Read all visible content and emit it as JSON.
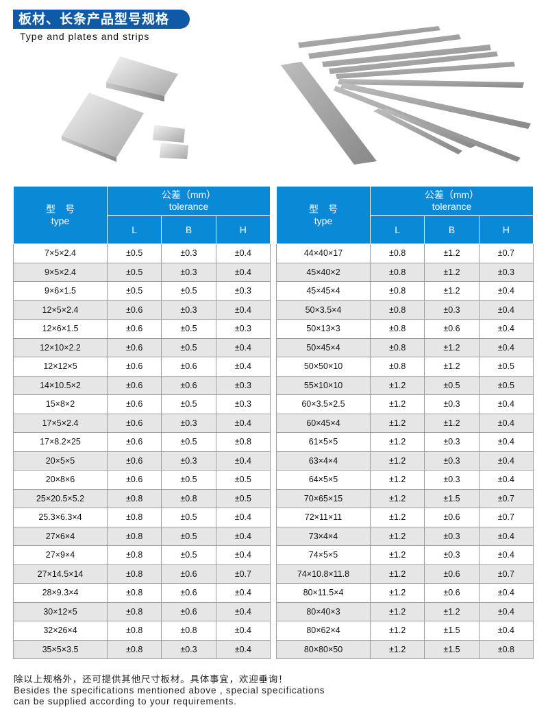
{
  "header": {
    "title_cn": "板材、长条产品型号规格",
    "title_en": "Type and plates and strips"
  },
  "table_headers": {
    "type_cn": "型　号",
    "type_en": "type",
    "tol_cn": "公差（mm）",
    "tol_en": "tolerance",
    "L": "L",
    "B": "B",
    "H": "H"
  },
  "left_rows": [
    [
      "7×5×2.4",
      "±0.5",
      "±0.3",
      "±0.4"
    ],
    [
      "9×5×2.4",
      "±0.5",
      "±0.3",
      "±0.4"
    ],
    [
      "9×6×1.5",
      "±0.5",
      "±0.5",
      "±0.3"
    ],
    [
      "12×5×2.4",
      "±0.6",
      "±0.3",
      "±0.4"
    ],
    [
      "12×6×1.5",
      "±0.6",
      "±0.5",
      "±0.3"
    ],
    [
      "12×10×2.2",
      "±0.6",
      "±0.5",
      "±0.4"
    ],
    [
      "12×12×5",
      "±0.6",
      "±0.6",
      "±0.4"
    ],
    [
      "14×10.5×2",
      "±0.6",
      "±0.6",
      "±0.3"
    ],
    [
      "15×8×2",
      "±0.6",
      "±0.5",
      "±0.3"
    ],
    [
      "17×5×2.4",
      "±0.6",
      "±0.3",
      "±0.4"
    ],
    [
      "17×8.2×25",
      "±0.6",
      "±0.5",
      "±0.8"
    ],
    [
      "20×5×5",
      "±0.6",
      "±0.3",
      "±0.4"
    ],
    [
      "20×8×6",
      "±0.6",
      "±0.5",
      "±0.5"
    ],
    [
      "25×20.5×5.2",
      "±0.8",
      "±0.8",
      "±0.5"
    ],
    [
      "25.3×6.3×4",
      "±0.8",
      "±0.5",
      "±0.4"
    ],
    [
      "27×6×4",
      "±0.8",
      "±0.5",
      "±0.4"
    ],
    [
      "27×9×4",
      "±0.8",
      "±0.5",
      "±0.4"
    ],
    [
      "27×14.5×14",
      "±0.8",
      "±0.6",
      "±0.7"
    ],
    [
      "28×9.3×4",
      "±0.8",
      "±0.6",
      "±0.4"
    ],
    [
      "30×12×5",
      "±0.8",
      "±0.6",
      "±0.4"
    ],
    [
      "32×26×4",
      "±0.8",
      "±0.8",
      "±0.4"
    ],
    [
      "35×5×3.5",
      "±0.8",
      "±0.3",
      "±0.4"
    ]
  ],
  "right_rows": [
    [
      "44×40×17",
      "±0.8",
      "±1.2",
      "±0.7"
    ],
    [
      "45×40×2",
      "±0.8",
      "±1.2",
      "±0.3"
    ],
    [
      "45×45×4",
      "±0.8",
      "±1.2",
      "±0.4"
    ],
    [
      "50×3.5×4",
      "±0.8",
      "±0.3",
      "±0.4"
    ],
    [
      "50×13×3",
      "±0.8",
      "±0.6",
      "±0.4"
    ],
    [
      "50×45×4",
      "±0.8",
      "±1.2",
      "±0.4"
    ],
    [
      "50×50×10",
      "±0.8",
      "±1.2",
      "±0.5"
    ],
    [
      "55×10×10",
      "±1.2",
      "±0.5",
      "±0.5"
    ],
    [
      "60×3.5×2.5",
      "±1.2",
      "±0.3",
      "±0.4"
    ],
    [
      "60×45×4",
      "±1.2",
      "±1.2",
      "±0.4"
    ],
    [
      "61×5×5",
      "±1.2",
      "±0.3",
      "±0.4"
    ],
    [
      "63×4×4",
      "±1.2",
      "±0.3",
      "±0.4"
    ],
    [
      "64×5×5",
      "±1.2",
      "±0.3",
      "±0.4"
    ],
    [
      "70×65×15",
      "±1.2",
      "±1.5",
      "±0.7"
    ],
    [
      "72×11×11",
      "±1.2",
      "±0.6",
      "±0.7"
    ],
    [
      "73×4×4",
      "±1.2",
      "±0.3",
      "±0.4"
    ],
    [
      "74×5×5",
      "±1.2",
      "±0.3",
      "±0.4"
    ],
    [
      "74×10.8×11.8",
      "±1.2",
      "±0.6",
      "±0.7"
    ],
    [
      "80×11.5×4",
      "±1.2",
      "±0.6",
      "±0.4"
    ],
    [
      "80×40×3",
      "±1.2",
      "±1.2",
      "±0.4"
    ],
    [
      "80×62×4",
      "±1.2",
      "±1.5",
      "±0.4"
    ],
    [
      "80×80×50",
      "±1.2",
      "±1.5",
      "±0.8"
    ]
  ],
  "footer": {
    "line_cn": "除以上规格外，还可提供其他尺寸板材。具体事宜，欢迎垂询！",
    "line_en1": "Besides the specifications mentioned above , special specifications",
    "line_en2": "can be supplied according to your requirements."
  },
  "colors": {
    "title_bg": "#0e5aa7",
    "header_bg": "#0a8ad6",
    "row_alt": "#e6e6e6"
  }
}
